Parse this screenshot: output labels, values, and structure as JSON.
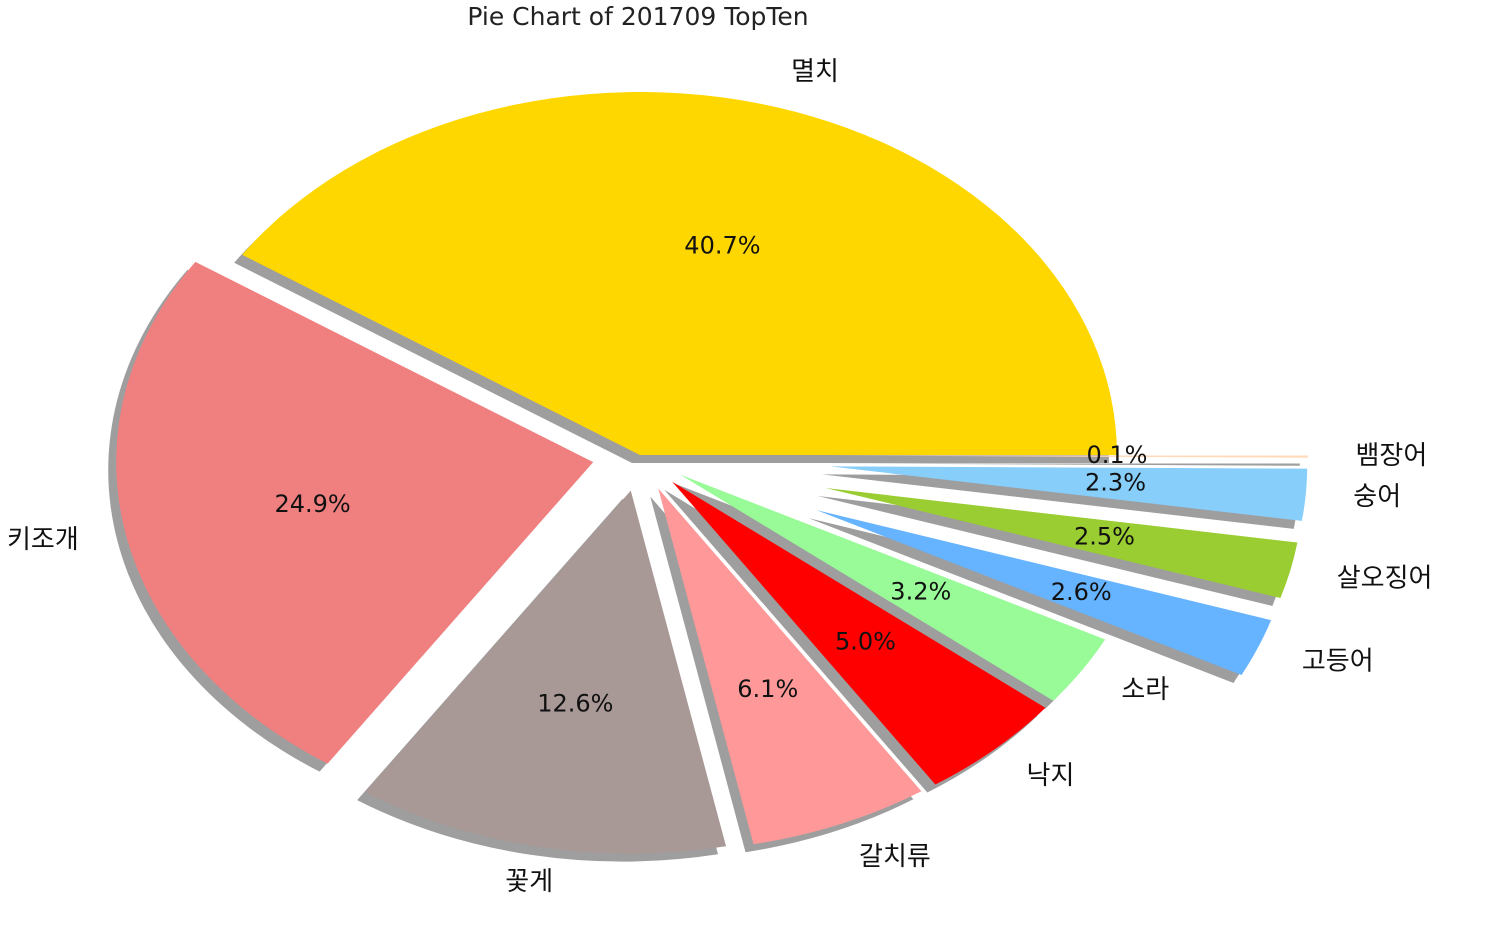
{
  "chart_data": {
    "type": "pie",
    "title": "Pie Chart of 201709 TopTen",
    "start_angle_deg": 0,
    "direction": "counterclockwise",
    "shadow": true,
    "slices": [
      {
        "label": "멸치",
        "value": 40.7,
        "pct_label": "40.7%",
        "color": "#FFD700",
        "explode": 0.0
      },
      {
        "label": "키조개",
        "value": 24.9,
        "pct_label": "24.9%",
        "color": "#F08080",
        "explode": 0.1
      },
      {
        "label": "꽃게",
        "value": 12.6,
        "pct_label": "12.6%",
        "color": "#A89896",
        "explode": 0.1
      },
      {
        "label": "갈치류",
        "value": 6.1,
        "pct_label": "6.1%",
        "color": "#FF9999",
        "explode": 0.1
      },
      {
        "label": "낙지",
        "value": 5.0,
        "pct_label": "5.0%",
        "color": "#FF0000",
        "explode": 0.1
      },
      {
        "label": "소라",
        "value": 3.2,
        "pct_label": "3.2%",
        "color": "#98FB98",
        "explode": 0.1
      },
      {
        "label": "고등어",
        "value": 2.6,
        "pct_label": "2.6%",
        "color": "#66B3FF",
        "explode": 0.4
      },
      {
        "label": "살오징어",
        "value": 2.5,
        "pct_label": "2.5%",
        "color": "#9ACD32",
        "explode": 0.4
      },
      {
        "label": "숭어",
        "value": 2.3,
        "pct_label": "2.3%",
        "color": "#87CEFA",
        "explode": 0.4
      },
      {
        "label": "뱀장어",
        "value": 0.1,
        "pct_label": "0.1%",
        "color": "#FFDAB9",
        "explode": 0.4
      }
    ]
  }
}
